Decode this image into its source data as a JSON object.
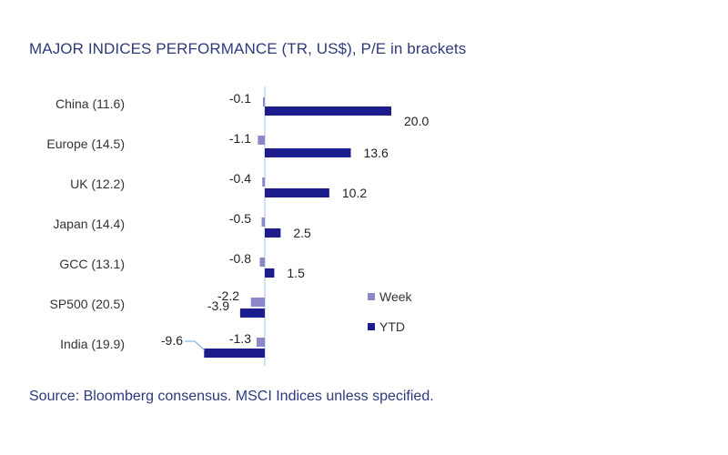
{
  "chart_data": {
    "type": "bar",
    "orientation": "horizontal",
    "title": "MAJOR INDICES PERFORMANCE (TR, US$), P/E in brackets",
    "source": "Source: Bloomberg consensus. MSCI Indices unless specified.",
    "categories": [
      "China (11.6)",
      "Europe (14.5)",
      "UK (12.2)",
      "Japan (14.4)",
      "GCC (13.1)",
      "SP500 (20.5)",
      "India (19.9)"
    ],
    "series": [
      {
        "name": "Week",
        "color": "#8a88c8",
        "values": [
          -0.1,
          -1.1,
          -0.4,
          -0.5,
          -0.8,
          -2.2,
          -1.3
        ]
      },
      {
        "name": "YTD",
        "color": "#1c1c8c",
        "values": [
          20.0,
          13.6,
          10.2,
          2.5,
          1.5,
          -3.9,
          -9.6
        ]
      }
    ],
    "value_labels": {
      "Week": [
        "-0.1",
        "-1.1",
        "-0.4",
        "-0.5",
        "-0.8",
        "-2.2",
        "-1.3"
      ],
      "YTD": [
        "20.0",
        "13.6",
        "10.2",
        "2.5",
        "1.5",
        "-3.9",
        "-9.6"
      ]
    },
    "axis_color": "#c5d5ea",
    "legend_position": "right"
  }
}
